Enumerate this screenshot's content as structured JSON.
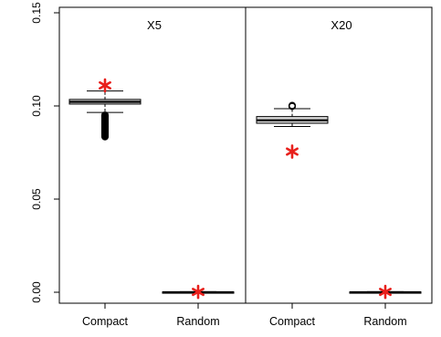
{
  "chart_data": {
    "type": "box",
    "ylim": [
      0,
      0.15
    ],
    "y_ticks": [
      {
        "value": 0.0,
        "label": "0.00"
      },
      {
        "value": 0.05,
        "label": "0.05"
      },
      {
        "value": 0.1,
        "label": "0.10"
      },
      {
        "value": 0.15,
        "label": "0.15"
      }
    ],
    "panels": [
      {
        "title": "X5",
        "groups": [
          {
            "label": "Compact",
            "whisker_low": 0.0965,
            "q1": 0.101,
            "median": 0.1022,
            "q3": 0.1035,
            "whisker_high": 0.108,
            "outliers": [
              0.095,
              0.0945,
              0.094,
              0.0935,
              0.093,
              0.0925,
              0.092,
              0.0915,
              0.091,
              0.0905,
              0.09,
              0.0895,
              0.089,
              0.0885,
              0.088,
              0.0875,
              0.087,
              0.0865,
              0.086,
              0.0855,
              0.085,
              0.0845,
              0.084,
              0.0835
            ],
            "marker": 0.111
          },
          {
            "label": "Random",
            "whisker_low": 0.0,
            "q1": 0.0,
            "median": 0.0,
            "q3": 0.0002,
            "whisker_high": 0.0003,
            "outliers": [],
            "marker": 0.0002
          }
        ]
      },
      {
        "title": "X20",
        "groups": [
          {
            "label": "Compact",
            "whisker_low": 0.089,
            "q1": 0.0907,
            "median": 0.0923,
            "q3": 0.0943,
            "whisker_high": 0.0985,
            "outliers": [
              0.0998,
              0.1002
            ],
            "marker": 0.0755
          },
          {
            "label": "Random",
            "whisker_low": 0.0,
            "q1": 0.0,
            "median": 0.0,
            "q3": 0.0002,
            "whisker_high": 0.0003,
            "outliers": [],
            "marker": 0.0002
          }
        ]
      }
    ],
    "colors": {
      "box_fill": "#d9d9d9",
      "marker": "#e8201c",
      "line": "#000000"
    },
    "marker_symbol": "*"
  }
}
